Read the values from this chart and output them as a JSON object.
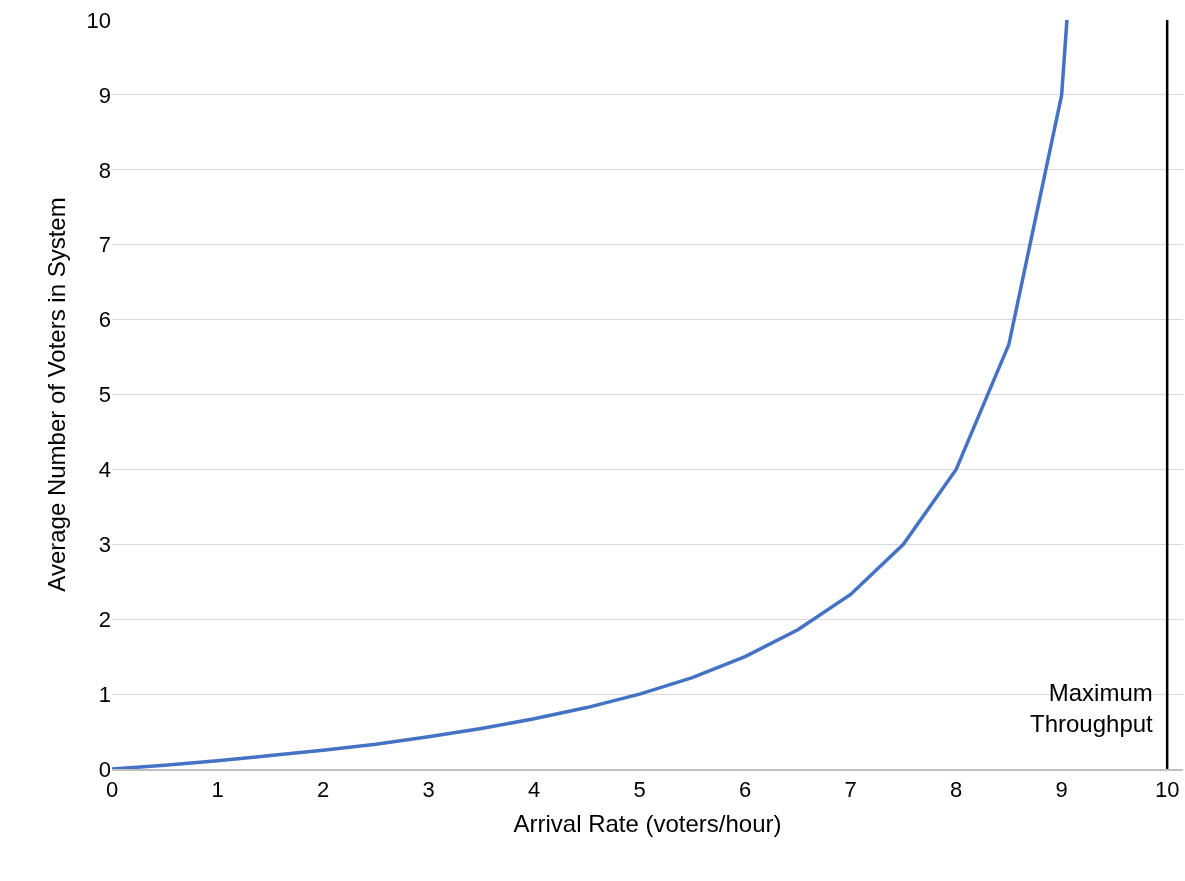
{
  "chart_data": {
    "type": "line",
    "xlabel": "Arrival Rate (voters/hour)",
    "ylabel": "Average Number of Voters in System",
    "x": [
      0,
      0.5,
      1,
      1.5,
      2,
      2.5,
      3,
      3.5,
      4,
      4.5,
      5,
      5.5,
      6,
      6.5,
      7,
      7.5,
      8,
      8.5,
      9,
      9.05
    ],
    "series": [
      {
        "color": "#4472c4",
        "values": [
          0,
          0.05,
          0.11,
          0.18,
          0.25,
          0.33,
          0.43,
          0.54,
          0.67,
          0.82,
          1,
          1.22,
          1.5,
          1.86,
          2.33,
          3,
          4,
          5.67,
          9,
          10
        ]
      }
    ],
    "xlim": [
      0,
      10.15
    ],
    "xticks": [
      0,
      1,
      2,
      3,
      4,
      5,
      6,
      7,
      8,
      9,
      10
    ],
    "ylim": [
      0,
      10
    ],
    "yticks": [
      0,
      1,
      2,
      3,
      4,
      5,
      6,
      7,
      8,
      9,
      10
    ],
    "grid": "y",
    "marker": "none",
    "line_style": "solid",
    "ref_lines": [
      {
        "axis": "x",
        "value": 10,
        "label": "Maximum\nThroughput",
        "color": "#000000"
      }
    ]
  }
}
